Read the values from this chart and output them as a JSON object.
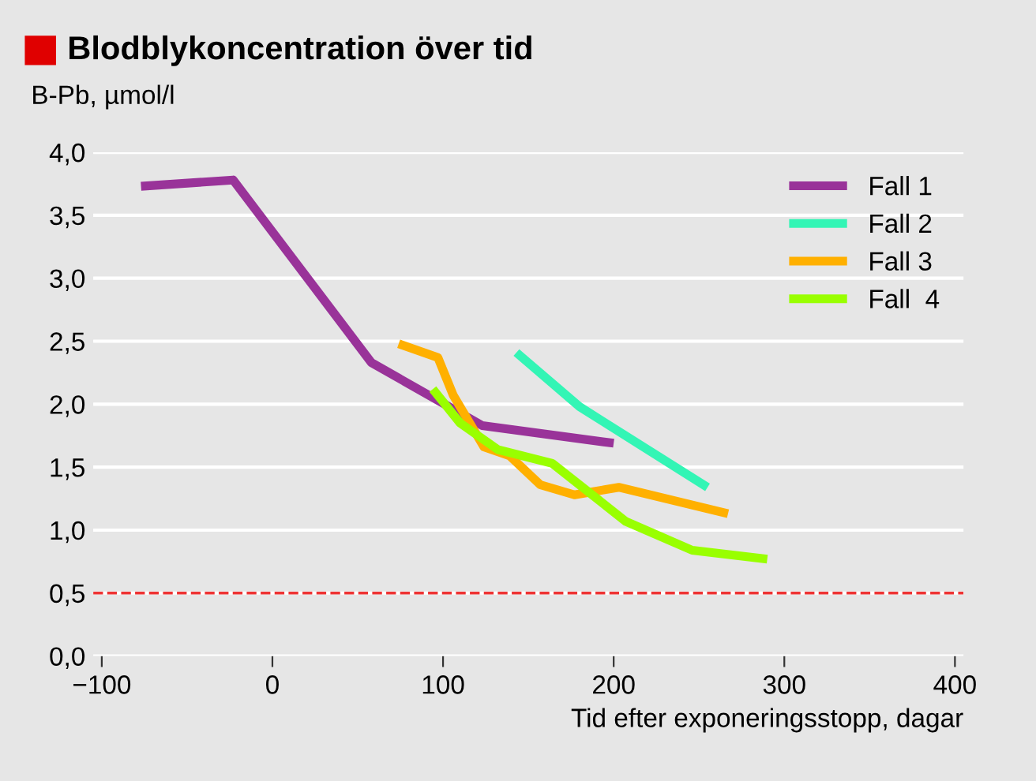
{
  "chart_data": {
    "type": "line",
    "title": "Blodblykoncentration över tid",
    "ylabel": "B-Pb, µmol/l",
    "xlabel": "Tid efter exponeringsstopp, dagar",
    "series": [
      {
        "name": "Fall 1",
        "color": "#993399",
        "x": [
          -77,
          -23,
          58,
          123,
          200
        ],
        "values": [
          3.73,
          3.78,
          2.33,
          1.83,
          1.69
        ]
      },
      {
        "name": "Fall 2",
        "color": "#33f5b5",
        "x": [
          143,
          180,
          255
        ],
        "values": [
          2.41,
          1.98,
          1.34
        ]
      },
      {
        "name": "Fall 3",
        "color": "#ffb000",
        "x": [
          74,
          97,
          106,
          124,
          139,
          157,
          177,
          203,
          267
        ],
        "values": [
          2.48,
          2.37,
          2.07,
          1.66,
          1.59,
          1.36,
          1.28,
          1.34,
          1.13
        ]
      },
      {
        "name": "Fall  4",
        "color": "#99ff00",
        "x": [
          94,
          110,
          132,
          164,
          207,
          246,
          290
        ],
        "values": [
          2.12,
          1.85,
          1.64,
          1.53,
          1.07,
          0.84,
          0.77
        ]
      }
    ],
    "xlim": [
      -105,
      405
    ],
    "ylim": [
      0,
      4
    ],
    "xticks": [
      {
        "value": -100,
        "label": "−100"
      },
      0,
      100,
      200,
      300,
      400
    ],
    "yticks": [
      {
        "value": 0,
        "label": "0,0"
      },
      {
        "value": 0.5,
        "label": "0,5"
      },
      {
        "value": 1,
        "label": "1,0"
      },
      {
        "value": 1.5,
        "label": "1,5"
      },
      {
        "value": 2,
        "label": "2,0"
      },
      {
        "value": 2.5,
        "label": "2,5"
      },
      {
        "value": 3,
        "label": "3,0"
      },
      {
        "value": 3.5,
        "label": "3,5"
      },
      {
        "value": 4,
        "label": "4,0"
      }
    ],
    "ref_lines": [
      {
        "axis": "y",
        "value": 0.5,
        "color": "#ee3333",
        "line_style": "dashed"
      }
    ],
    "grid": "y",
    "legend": "top right",
    "line_style": "solid",
    "marker": "none"
  }
}
